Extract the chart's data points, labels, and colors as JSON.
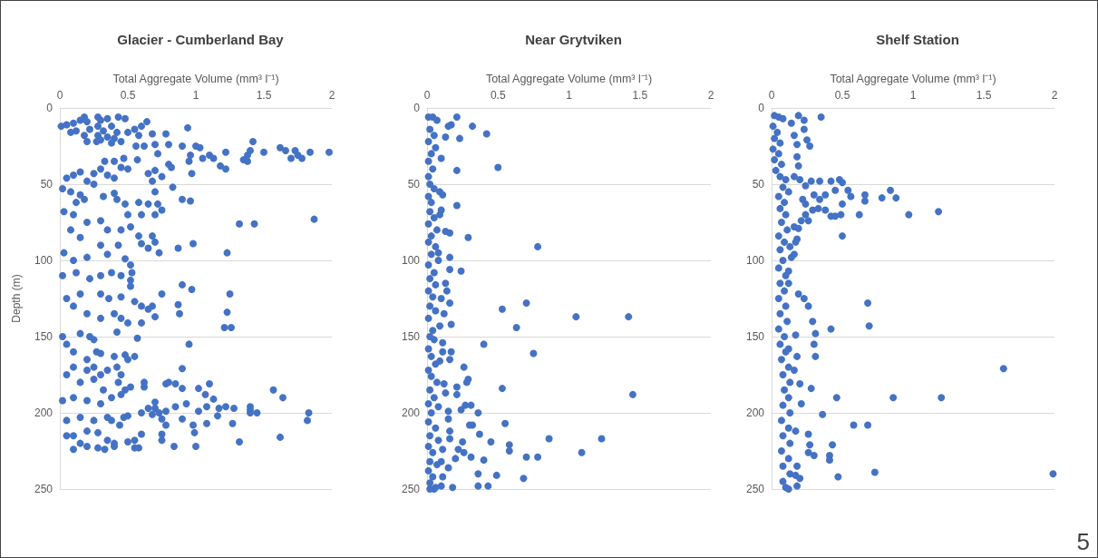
{
  "chart_data": [
    {
      "type": "scatter",
      "title": "Glacier - Cumberland Bay",
      "xlabel": "Total Aggregate Volume (mm³ l⁻¹)",
      "ylabel": "Depth (m)",
      "color": "#4472c4",
      "marker": "circle",
      "grid": "y",
      "xlim": [
        0,
        2
      ],
      "xticks": [
        0,
        0.5,
        1,
        1.5,
        2
      ],
      "ylim": [
        250,
        0
      ],
      "yticks": [
        0,
        50,
        100,
        150,
        200,
        250
      ],
      "x": [
        0.01,
        0.05,
        0.1,
        0.15,
        0.18,
        0.2,
        0.22,
        0.18,
        0.12,
        0.08,
        0.2,
        0.28,
        0.3,
        0.35,
        0.43,
        0.48,
        0.28,
        0.32,
        0.28,
        0.35,
        0.3,
        0.27,
        0.38,
        0.42,
        0.4,
        0.45,
        0.38,
        0.5,
        0.55,
        0.6,
        0.64,
        0.58,
        0.56,
        0.62,
        0.68,
        0.7,
        0.78,
        0.8,
        0.9,
        0.94,
        1.0,
        1.03,
        0.72,
        0.96,
        1.05,
        1.1,
        1.13,
        0.95,
        1.22,
        1.18,
        1.22,
        1.35,
        1.38,
        1.4,
        1.42,
        1.5,
        1.38,
        1.62,
        1.66,
        1.7,
        1.73,
        1.75,
        1.78,
        1.84,
        1.98,
        0.47,
        0.57,
        0.4,
        0.33,
        0.45,
        0.5,
        0.8,
        0.82,
        0.65,
        0.7,
        0.97,
        0.75,
        0.3,
        0.35,
        0.4,
        0.25,
        0.15,
        0.1,
        0.05,
        0.2,
        0.25,
        0.02,
        0.08,
        0.15,
        0.12,
        0.18,
        0.32,
        0.4,
        0.42,
        0.48,
        0.58,
        0.65,
        0.72,
        0.7,
        0.68,
        0.83,
        0.9,
        0.96,
        0.5,
        0.6,
        0.7,
        0.75,
        1.87,
        1.32,
        1.43,
        0.03,
        0.1,
        0.2,
        0.3,
        0.35,
        0.45,
        0.52,
        0.08,
        0.15,
        0.58,
        0.68,
        0.7,
        0.6,
        0.65,
        0.3,
        0.43,
        0.87,
        0.98,
        0.73,
        1.23,
        0.03,
        0.1,
        0.2,
        0.35,
        0.48,
        0.52,
        0.53,
        0.02,
        0.12,
        0.22,
        0.3,
        0.38,
        0.45,
        0.52,
        0.52,
        0.9,
        0.97,
        0.75,
        1.25,
        0.05,
        0.15,
        0.3,
        0.36,
        0.45,
        0.55,
        0.6,
        0.65,
        0.68,
        0.7,
        0.87,
        0.88,
        1.23,
        1.21,
        1.26,
        0.1,
        0.2,
        0.3,
        0.4,
        0.45,
        0.5,
        0.6,
        0.42,
        0.02,
        0.05,
        0.15,
        0.22,
        0.25,
        0.57,
        0.95,
        0.1,
        0.2,
        0.27,
        0.3,
        0.4,
        0.48,
        0.5,
        0.55,
        0.1,
        0.05,
        0.2,
        0.25,
        0.3,
        0.35,
        0.42,
        0.45,
        0.9,
        0.15,
        0.25,
        0.32,
        0.43,
        0.48,
        0.52,
        0.62,
        0.62,
        0.78,
        0.8,
        0.85,
        0.9,
        1.02,
        1.1,
        1.07,
        1.13,
        1.57,
        1.64,
        0.02,
        0.1,
        0.2,
        0.3,
        0.38,
        0.45,
        0.65,
        0.7,
        0.7,
        0.78,
        0.85,
        0.93,
        1.02,
        1.08,
        1.17,
        1.22,
        1.28,
        1.4,
        1.4,
        1.4,
        1.45,
        1.83,
        1.82,
        1.16,
        0.6,
        0.68,
        0.73,
        0.75,
        0.78,
        0.9,
        0.98,
        0.99,
        1.08,
        1.27,
        0.05,
        0.15,
        0.25,
        0.35,
        0.38,
        0.47,
        0.5,
        0.44,
        0.1,
        0.2,
        0.28,
        0.35,
        0.4,
        0.5,
        0.55,
        0.6,
        0.75,
        0.75,
        1.0,
        1.32,
        1.62,
        0.05,
        0.15,
        0.1,
        0.2,
        0.28,
        0.33,
        0.4,
        0.55,
        0.58,
        0.84
      ],
      "values": [
        12,
        11,
        10,
        8,
        6,
        9,
        14,
        18,
        15,
        16,
        22,
        6,
        8,
        7,
        6,
        7,
        12,
        15,
        18,
        19,
        21,
        22,
        12,
        16,
        20,
        22,
        23,
        16,
        14,
        12,
        9,
        18,
        25,
        25,
        17,
        24,
        17,
        24,
        25,
        13,
        25,
        26,
        30,
        31,
        33,
        31,
        33,
        35,
        29,
        38,
        40,
        34,
        31,
        28,
        22,
        29,
        35,
        26,
        28,
        33,
        28,
        31,
        33,
        29,
        29,
        33,
        34,
        35,
        35,
        39,
        40,
        37,
        39,
        43,
        41,
        43,
        45,
        40,
        44,
        46,
        43,
        42,
        44,
        46,
        48,
        50,
        53,
        55,
        57,
        62,
        60,
        58,
        56,
        60,
        63,
        62,
        63,
        63,
        55,
        48,
        52,
        60,
        61,
        70,
        70,
        70,
        67,
        73,
        76,
        76,
        68,
        70,
        75,
        74,
        80,
        80,
        78,
        80,
        85,
        84,
        84,
        88,
        89,
        92,
        90,
        90,
        92,
        89,
        95,
        95,
        95,
        100,
        98,
        96,
        99,
        103,
        108,
        110,
        108,
        112,
        110,
        108,
        110,
        113,
        117,
        116,
        119,
        122,
        122,
        125,
        122,
        122,
        125,
        124,
        127,
        130,
        132,
        130,
        137,
        129,
        135,
        134,
        144,
        144,
        130,
        135,
        138,
        135,
        138,
        141,
        141,
        147,
        150,
        155,
        148,
        150,
        152,
        151,
        155,
        160,
        165,
        160,
        161,
        163,
        162,
        165,
        163,
        170,
        175,
        172,
        170,
        175,
        172,
        170,
        175,
        171,
        180,
        178,
        185,
        180,
        185,
        183,
        180,
        183,
        181,
        180,
        181,
        184,
        184,
        181,
        188,
        191,
        185,
        190,
        192,
        190,
        192,
        194,
        190,
        188,
        197,
        193,
        197,
        199,
        196,
        194,
        199,
        196,
        197,
        196,
        197,
        196,
        198,
        200,
        200,
        200,
        205,
        202,
        200,
        201,
        200,
        204,
        208,
        204,
        208,
        213,
        207,
        207,
        205,
        203,
        205,
        203,
        205,
        203,
        202,
        208,
        215,
        212,
        213,
        218,
        220,
        219,
        218,
        214,
        214,
        218,
        222,
        219,
        216,
        215,
        220,
        224,
        222,
        223,
        224,
        222,
        223,
        223,
        222
      ]
    },
    {
      "type": "scatter",
      "title": "Near Grytviken",
      "xlabel": "Total Aggregate Volume (mm³ l⁻¹)",
      "color": "#4472c4",
      "marker": "circle",
      "grid": "y",
      "xlim": [
        0,
        2
      ],
      "xticks": [
        0,
        0.5,
        1,
        1.5,
        2
      ],
      "ylim": [
        250,
        0
      ],
      "yticks": [
        0,
        50,
        100,
        150,
        200,
        250
      ],
      "x": [
        0.01,
        0.04,
        0.07,
        0.02,
        0.05,
        0.01,
        0.06,
        0.03,
        0.01,
        0.04,
        0.01,
        0.02,
        0.05,
        0.01,
        0.03,
        0.02,
        0.05,
        0.01,
        0.07,
        0.03,
        0.01,
        0.06,
        0.03,
        0.08,
        0.01,
        0.05,
        0.02,
        0.06,
        0.01,
        0.04,
        0.02,
        0.06,
        0.01,
        0.04,
        0.02,
        0.05,
        0.01,
        0.03,
        0.06,
        0.01,
        0.03,
        0.07,
        0.02,
        0.05,
        0.01,
        0.08,
        0.03,
        0.01,
        0.06,
        0.02,
        0.08,
        0.01,
        0.04,
        0.02,
        0.07,
        0.01,
        0.04,
        0.02,
        0.05,
        0.21,
        0.17,
        0.15,
        0.32,
        0.42,
        0.23,
        0.13,
        0.1,
        0.5,
        0.21,
        0.09,
        0.11,
        0.21,
        0.1,
        0.09,
        0.13,
        0.16,
        0.29,
        0.78,
        0.16,
        0.08,
        0.16,
        0.24,
        0.13,
        0.14,
        0.1,
        0.16,
        0.7,
        0.53,
        0.12,
        1.05,
        1.42,
        0.09,
        0.17,
        0.63,
        0.11,
        0.4,
        0.11,
        0.17,
        0.75,
        0.09,
        0.16,
        0.26,
        0.29,
        0.28,
        0.12,
        0.21,
        0.53,
        1.45,
        0.13,
        0.21,
        0.27,
        0.31,
        0.15,
        0.24,
        0.36,
        0.15,
        0.55,
        0.3,
        0.32,
        0.16,
        0.37,
        0.16,
        0.86,
        1.23,
        0.25,
        0.45,
        0.58,
        0.58,
        0.11,
        0.22,
        0.26,
        1.09,
        0.1,
        0.2,
        0.31,
        0.4,
        0.7,
        0.78,
        0.15,
        0.36,
        0.49,
        0.11,
        0.68,
        0.06,
        0.18,
        0.36,
        0.43,
        0.1,
        0.02
      ],
      "values": [
        6,
        6,
        8,
        14,
        18,
        22,
        26,
        30,
        35,
        40,
        45,
        50,
        53,
        58,
        62,
        68,
        72,
        76,
        80,
        84,
        88,
        91,
        96,
        100,
        103,
        108,
        112,
        116,
        120,
        124,
        130,
        133,
        138,
        146,
        150,
        152,
        158,
        163,
        168,
        172,
        176,
        180,
        185,
        190,
        194,
        196,
        200,
        206,
        210,
        215,
        218,
        222,
        226,
        232,
        234,
        238,
        242,
        246,
        250,
        6,
        11,
        12,
        12,
        17,
        20,
        19,
        33,
        39,
        41,
        55,
        57,
        64,
        67,
        70,
        81,
        82,
        85,
        91,
        98,
        95,
        106,
        107,
        115,
        120,
        125,
        128,
        128,
        132,
        135,
        137,
        137,
        143,
        142,
        144,
        154,
        155,
        160,
        160,
        161,
        166,
        165,
        170,
        178,
        180,
        181,
        183,
        184,
        188,
        187,
        188,
        195,
        195,
        199,
        198,
        200,
        204,
        207,
        208,
        208,
        212,
        214,
        217,
        217,
        217,
        219,
        219,
        221,
        225,
        224,
        224,
        226,
        226,
        232,
        230,
        229,
        231,
        229,
        229,
        236,
        240,
        241,
        242,
        243,
        249,
        249,
        248,
        248,
        248,
        250
      ]
    },
    {
      "type": "scatter",
      "title": "Shelf Station",
      "xlabel": "Total Aggregate Volume (mm³ l⁻¹)",
      "color": "#4472c4",
      "marker": "circle",
      "grid": "y",
      "xlim": [
        0,
        2
      ],
      "xticks": [
        0,
        0.5,
        1,
        1.5,
        2
      ],
      "ylim": [
        250,
        0
      ],
      "yticks": [
        0,
        50,
        100,
        150,
        200,
        250
      ],
      "annotations": [
        "5"
      ],
      "x": [
        0.02,
        0.05,
        0.08,
        0.01,
        0.04,
        0.02,
        0.06,
        0.01,
        0.05,
        0.02,
        0.07,
        0.03,
        0.06,
        0.1,
        0.08,
        0.12,
        0.05,
        0.09,
        0.06,
        0.1,
        0.07,
        0.11,
        0.05,
        0.09,
        0.06,
        0.08,
        0.05,
        0.1,
        0.06,
        0.09,
        0.05,
        0.1,
        0.06,
        0.11,
        0.05,
        0.09,
        0.06,
        0.1,
        0.07,
        0.12,
        0.08,
        0.13,
        0.09,
        0.12,
        0.08,
        0.13,
        0.07,
        0.12,
        0.08,
        0.13,
        0.07,
        0.12,
        0.08,
        0.13,
        0.08,
        0.1,
        0.19,
        0.35,
        0.23,
        0.14,
        0.23,
        0.16,
        0.25,
        0.27,
        0.18,
        0.18,
        0.19,
        0.16,
        0.2,
        0.28,
        0.34,
        0.42,
        0.48,
        0.5,
        0.24,
        0.45,
        0.54,
        0.84,
        0.3,
        0.38,
        0.56,
        0.66,
        0.78,
        0.88,
        0.34,
        0.22,
        0.66,
        0.5,
        0.24,
        0.29,
        0.33,
        0.38,
        0.24,
        0.42,
        0.45,
        0.49,
        0.62,
        0.97,
        1.18,
        0.21,
        0.26,
        0.16,
        0.19,
        0.5,
        0.18,
        0.17,
        0.13,
        0.16,
        0.14,
        0.12,
        0.12,
        0.19,
        0.23,
        0.26,
        0.68,
        0.29,
        0.69,
        0.42,
        0.31,
        0.17,
        0.3,
        0.12,
        0.31,
        0.18,
        1.64,
        0.16,
        0.2,
        0.28,
        0.46,
        0.86,
        1.2,
        0.21,
        0.36,
        0.58,
        0.68,
        0.17,
        0.26,
        0.27,
        0.43,
        0.26,
        0.3,
        0.41,
        0.41,
        0.18,
        0.73,
        1.99,
        0.17,
        0.2,
        0.47,
        0.18,
        0.12
      ],
      "values": [
        5,
        6,
        7,
        12,
        16,
        20,
        23,
        27,
        30,
        34,
        37,
        41,
        45,
        47,
        52,
        55,
        58,
        62,
        66,
        70,
        75,
        80,
        84,
        88,
        93,
        100,
        105,
        110,
        115,
        120,
        125,
        130,
        135,
        140,
        145,
        150,
        155,
        160,
        165,
        170,
        175,
        180,
        185,
        190,
        195,
        200,
        205,
        210,
        215,
        220,
        225,
        230,
        235,
        240,
        245,
        249,
        5,
        6,
        8,
        10,
        14,
        18,
        21,
        25,
        24,
        32,
        38,
        45,
        47,
        48,
        48,
        48,
        47,
        49,
        51,
        54,
        54,
        54,
        57,
        57,
        58,
        57,
        59,
        59,
        60,
        60,
        61,
        63,
        63,
        67,
        66,
        67,
        70,
        71,
        71,
        70,
        70,
        70,
        68,
        74,
        74,
        78,
        79,
        84,
        86,
        88,
        91,
        96,
        98,
        107,
        115,
        122,
        125,
        130,
        128,
        140,
        143,
        145,
        148,
        149,
        155,
        158,
        163,
        163,
        171,
        172,
        181,
        184,
        190,
        190,
        190,
        194,
        201,
        208,
        208,
        212,
        214,
        221,
        221,
        226,
        228,
        228,
        231,
        235,
        239,
        240,
        241,
        243,
        242,
        248,
        250
      ]
    }
  ]
}
